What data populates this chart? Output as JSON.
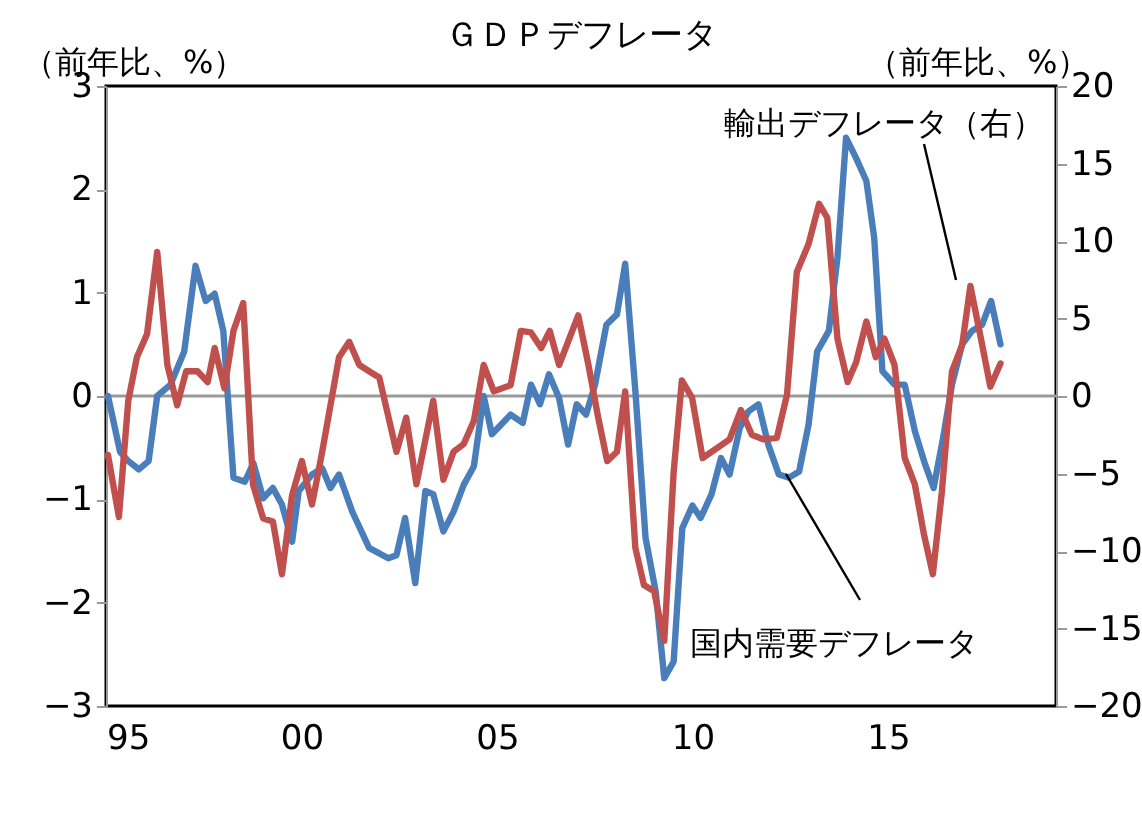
{
  "chart_data": {
    "type": "line",
    "title": "ＧＤＰデフレータ",
    "ylabel": "（前年比、%）",
    "y2label": "（前年比、%）",
    "xlim": [
      1995,
      2019.3
    ],
    "xticks": [
      {
        "value": 1995,
        "label": "95"
      },
      {
        "value": 2000,
        "label": "00"
      },
      {
        "value": 2005,
        "label": "05"
      },
      {
        "value": 2010,
        "label": "10"
      },
      {
        "value": 2015,
        "label": "15"
      }
    ],
    "ylim": [
      -3,
      3
    ],
    "yticks": [
      -3,
      -2,
      -1,
      0,
      1,
      2,
      3
    ],
    "y2lim": [
      -20,
      20
    ],
    "y2ticks": [
      -20,
      -15,
      -10,
      -5,
      0,
      5,
      10,
      15,
      20
    ],
    "ref_lines": [
      {
        "axis": "y",
        "value": 0,
        "color": "#999999"
      }
    ],
    "legend": false,
    "grid": false,
    "line_style": "solid",
    "marker": "none",
    "series": [
      {
        "name": "国内需要デフレータ",
        "color": "#4a7ebb",
        "axis": "y",
        "x": [
          1995.05,
          1995.36,
          1995.57,
          1995.84,
          1996.09,
          1996.31,
          1996.65,
          1997.0,
          1997.29,
          1997.55,
          1997.78,
          1998.0,
          1998.26,
          1998.55,
          1998.77,
          1999.02,
          1999.27,
          1999.5,
          1999.76,
          1999.93,
          2000.27,
          2000.53,
          2000.74,
          2000.96,
          2001.3,
          2001.73,
          2002.22,
          2002.43,
          2002.65,
          2002.91,
          2003.17,
          2003.37,
          2003.63,
          2003.89,
          2004.15,
          2004.41,
          2004.66,
          2004.87,
          2005.35,
          2005.66,
          2005.87,
          2006.1,
          2006.33,
          2006.59,
          2006.82,
          2007.04,
          2007.28,
          2007.51,
          2007.8,
          2008.07,
          2008.28,
          2008.54,
          2008.8,
          2009.06,
          2009.28,
          2009.52,
          2009.74,
          2010.0,
          2010.21,
          2010.49,
          2010.73,
          2010.95,
          2011.21,
          2011.43,
          2011.69,
          2011.94,
          2012.21,
          2012.47,
          2012.73,
          2012.97,
          2013.19,
          2013.49,
          2013.71,
          2013.93,
          2014.19,
          2014.45,
          2014.65,
          2014.86,
          2015.17,
          2015.43,
          2015.69,
          2015.95,
          2016.17,
          2016.41,
          2016.64,
          2016.9,
          2017.15,
          2017.41,
          2017.64,
          2017.88
        ],
        "values": [
          0,
          -0.54,
          -0.63,
          -0.71,
          -0.63,
          0,
          0.11,
          0.43,
          1.26,
          0.92,
          0.99,
          0.63,
          -0.79,
          -0.83,
          -0.65,
          -0.99,
          -0.89,
          -1.05,
          -1.41,
          -0.92,
          -0.76,
          -0.7,
          -0.89,
          -0.76,
          -1.12,
          -1.47,
          -1.57,
          -1.54,
          -1.18,
          -1.81,
          -0.92,
          -0.95,
          -1.31,
          -1.12,
          -0.86,
          -0.68,
          0,
          -0.37,
          -0.18,
          -0.26,
          0.11,
          -0.08,
          0.21,
          -0.02,
          -0.47,
          -0.08,
          -0.18,
          0.11,
          0.69,
          0.79,
          1.28,
          0.05,
          -1.37,
          -1.89,
          -2.73,
          -2.57,
          -1.28,
          -1.06,
          -1.18,
          -0.95,
          -0.6,
          -0.76,
          -0.31,
          -0.15,
          -0.08,
          -0.47,
          -0.76,
          -0.79,
          -0.73,
          -0.28,
          0.43,
          0.63,
          1.34,
          2.5,
          2.3,
          2.08,
          1.53,
          0.24,
          0.11,
          0.11,
          -0.34,
          -0.66,
          -0.89,
          -0.41,
          0.11,
          0.5,
          0.63,
          0.69,
          0.92,
          0.5
        ]
      },
      {
        "name": "輸出デフレータ（右）",
        "color": "#c0504d",
        "axis": "y2",
        "x": [
          1995.05,
          1995.33,
          1995.57,
          1995.79,
          1996.05,
          1996.31,
          1996.57,
          1996.82,
          1997.05,
          1997.34,
          1997.6,
          1997.78,
          1998.03,
          1998.26,
          1998.51,
          1998.76,
          1999.02,
          1999.27,
          1999.5,
          1999.76,
          2000.01,
          2000.27,
          2000.53,
          2000.96,
          2001.22,
          2001.48,
          2001.73,
          2001.99,
          2002.43,
          2002.68,
          2002.94,
          2003.37,
          2003.63,
          2003.89,
          2004.15,
          2004.41,
          2004.66,
          2004.92,
          2005.35,
          2005.61,
          2005.87,
          2006.13,
          2006.35,
          2006.59,
          2007.08,
          2007.34,
          2007.59,
          2007.82,
          2008.07,
          2008.28,
          2008.54,
          2008.76,
          2009.02,
          2009.28,
          2009.52,
          2009.73,
          2009.99,
          2010.26,
          2010.61,
          2010.95,
          2011.24,
          2011.52,
          2011.81,
          2012.16,
          2012.42,
          2012.67,
          2012.97,
          2013.24,
          2013.45,
          2013.71,
          2013.97,
          2014.19,
          2014.45,
          2014.69,
          2014.91,
          2015.17,
          2015.43,
          2015.69,
          2015.92,
          2016.15,
          2016.38,
          2016.64,
          2016.9,
          2017.11,
          2017.38,
          2017.62,
          2017.88
        ],
        "values": [
          -3.8,
          -7.8,
          -0.3,
          2.5,
          4.0,
          9.3,
          2.0,
          -0.6,
          1.6,
          1.6,
          0.9,
          3.1,
          0.5,
          4.2,
          6.0,
          -5.7,
          -7.9,
          -8.1,
          -11.5,
          -6.4,
          -4.2,
          -7.0,
          -3.6,
          2.5,
          3.5,
          2.0,
          1.6,
          1.2,
          -3.6,
          -1.4,
          -5.7,
          -0.3,
          -5.4,
          -3.6,
          -3.1,
          -1.6,
          2.0,
          0.3,
          0.7,
          4.2,
          4.1,
          3.1,
          4.2,
          2.0,
          5.2,
          2.0,
          -1.4,
          -4.2,
          -3.6,
          0.3,
          -9.8,
          -12.2,
          -12.6,
          -15.8,
          -4.9,
          1.0,
          -0.1,
          -4.0,
          -3.4,
          -2.8,
          -0.9,
          -2.5,
          -2.8,
          -2.7,
          0.1,
          8.0,
          9.8,
          12.4,
          11.5,
          3.7,
          0.9,
          2.2,
          4.8,
          2.5,
          3.7,
          2.0,
          -4.0,
          -5.7,
          -8.9,
          -11.5,
          -6.2,
          1.6,
          3.3,
          7.1,
          3.7,
          0.6,
          2.1
        ]
      }
    ]
  }
}
